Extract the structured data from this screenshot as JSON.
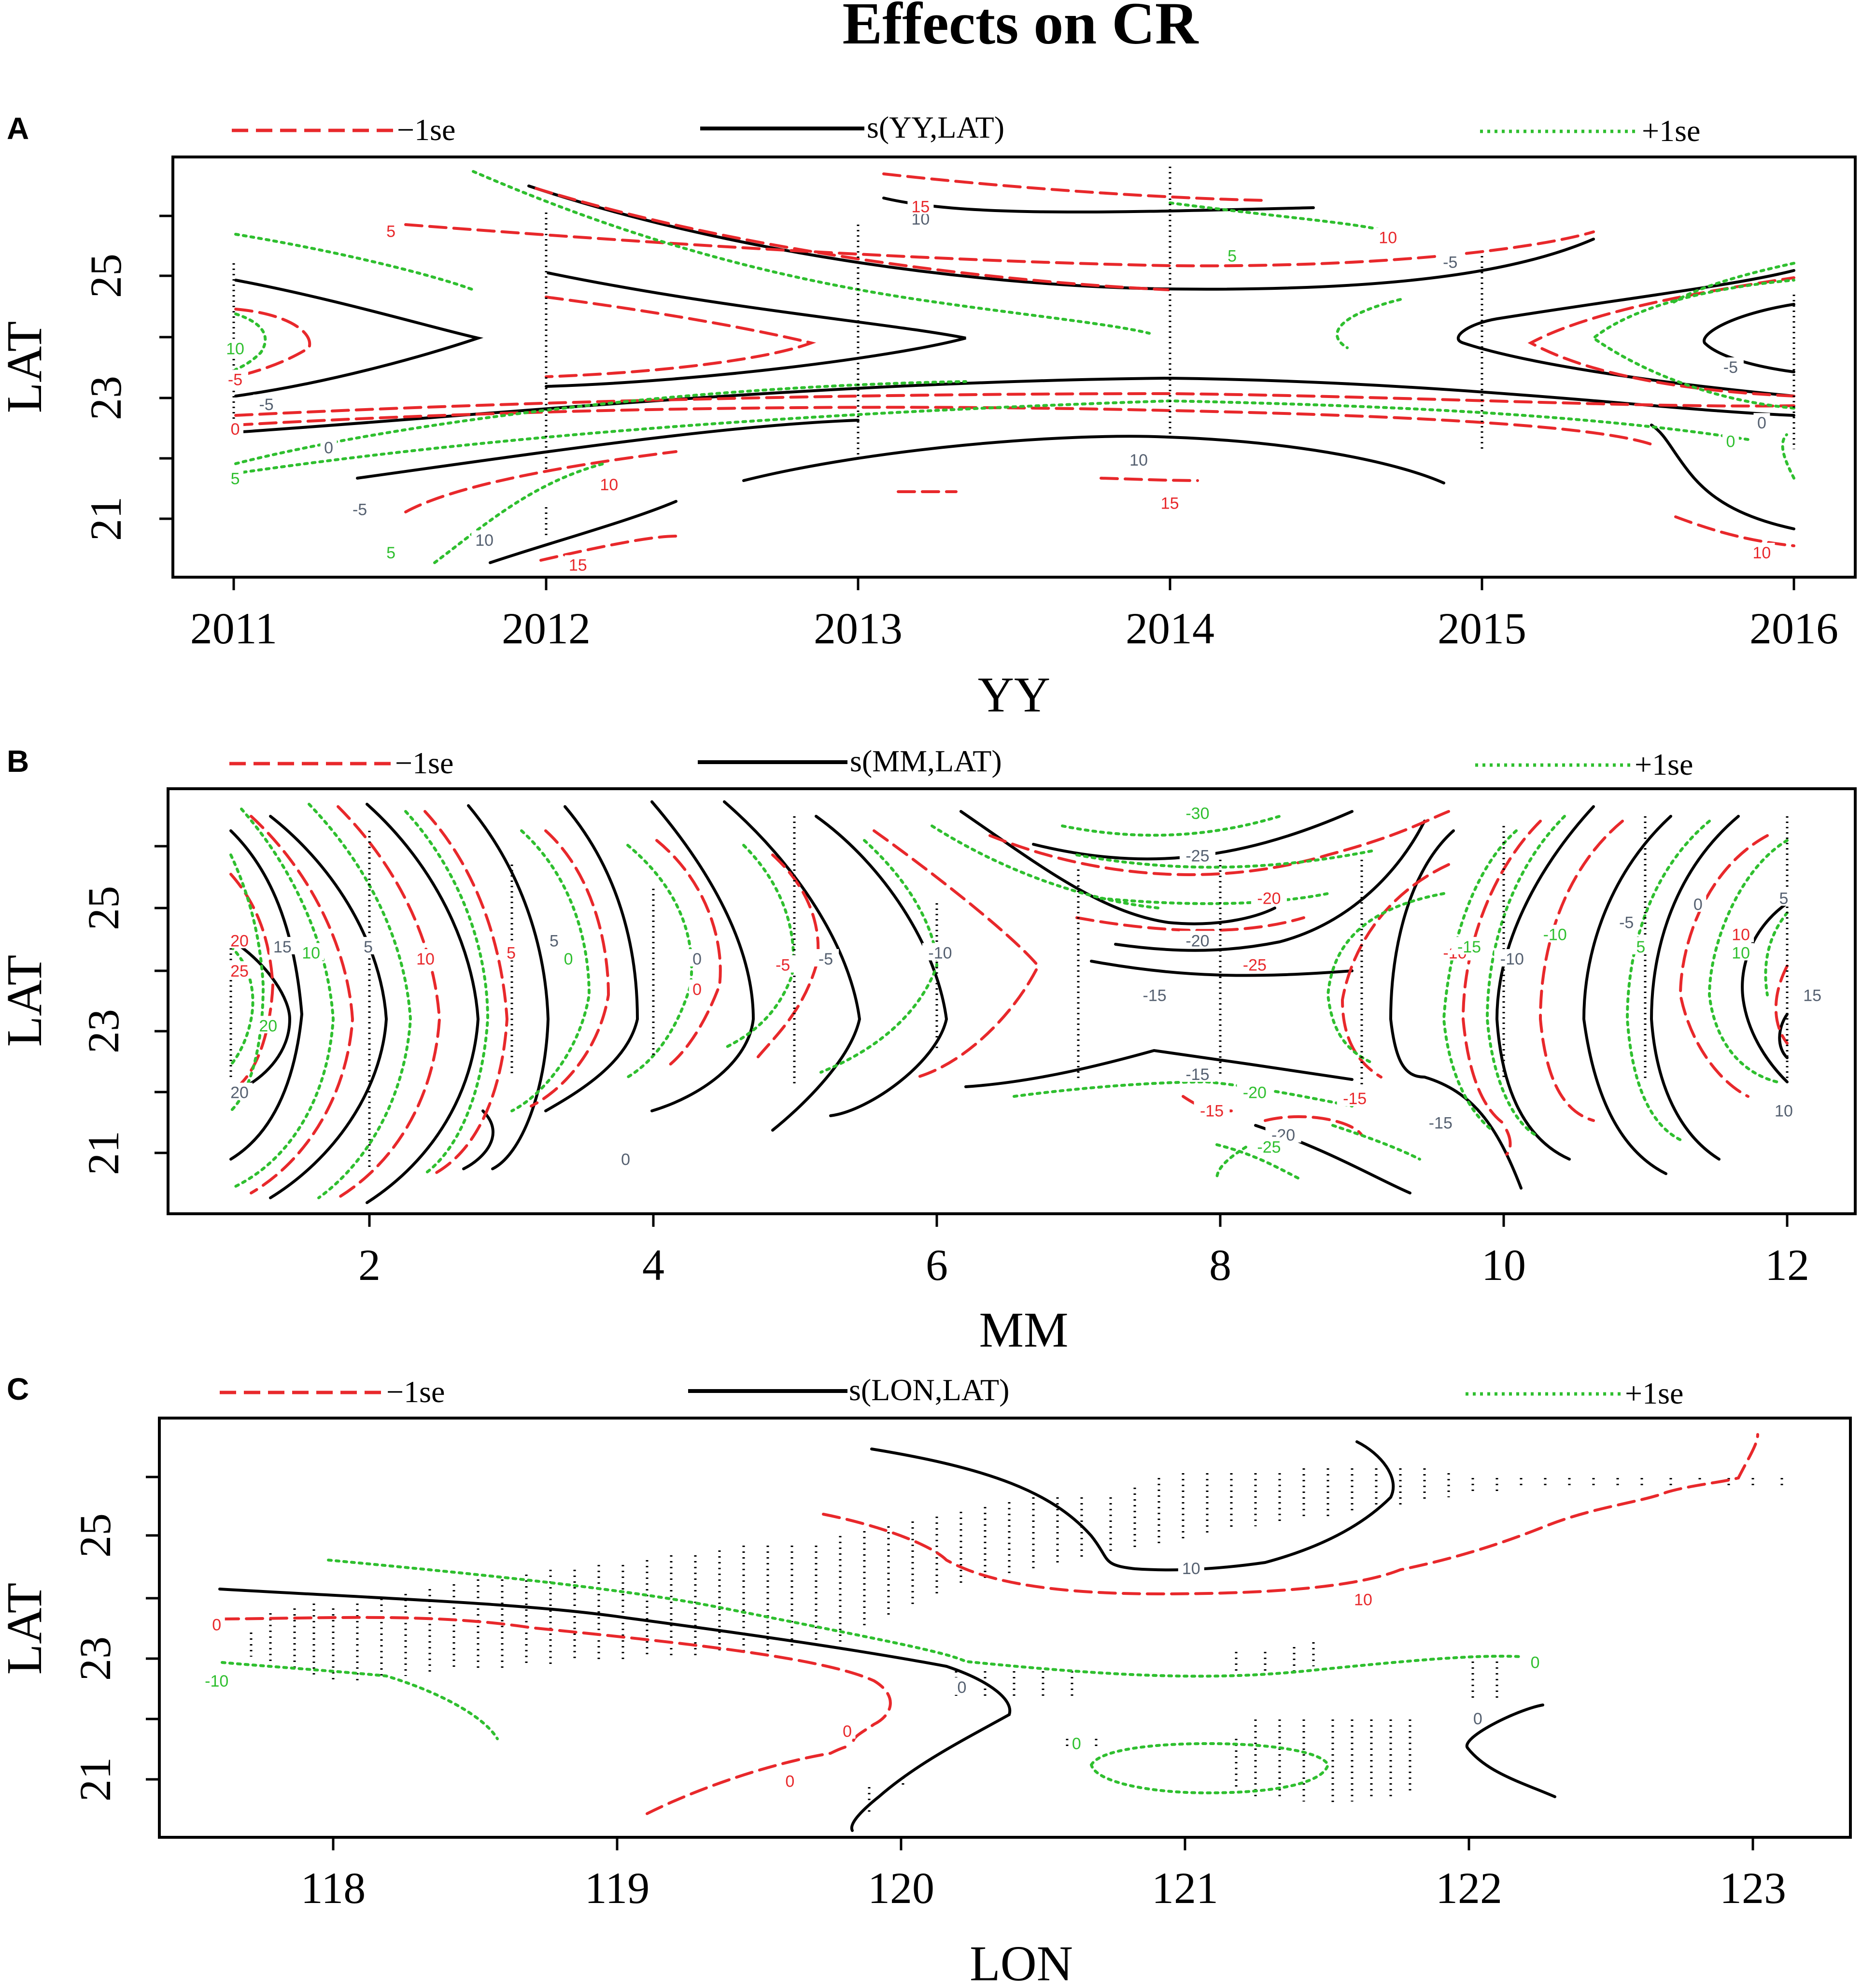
{
  "figure": {
    "title": "Effects on CR"
  },
  "legend": {
    "minus": "−1se",
    "plus": "+1se"
  },
  "colors": {
    "fit": "#000000",
    "minus": "#e8282b",
    "plus": "#2fbf2f",
    "frame": "#000000"
  },
  "chart_data": [
    {
      "type": "contour",
      "panel": "A",
      "title": "",
      "legend_fit": "s(YY,LAT)",
      "xlabel": "YY",
      "ylabel": "LAT",
      "xlim": [
        2010.8,
        2016.2
      ],
      "ylim": [
        20.2,
        27.0
      ],
      "xticks": [
        2011,
        2012,
        2013,
        2014,
        2015,
        2016
      ],
      "yticks": [
        21,
        23,
        25
      ],
      "xtick_labels": [
        "2011",
        "2012",
        "2013",
        "2014",
        "2015",
        "2016"
      ],
      "ytick_labels": [
        "21",
        "23",
        "25"
      ],
      "contour_labels": [
        {
          "series": "fit",
          "text": "-5",
          "x": 2011.1,
          "y": 23.0
        },
        {
          "series": "fit",
          "text": "0",
          "x": 2011.3,
          "y": 22.3
        },
        {
          "series": "fit",
          "text": "-5",
          "x": 2011.4,
          "y": 21.3
        },
        {
          "series": "fit",
          "text": "10",
          "x": 2013.2,
          "y": 26.0
        },
        {
          "series": "fit",
          "text": "-5",
          "x": 2014.9,
          "y": 25.3
        },
        {
          "series": "fit",
          "text": "10",
          "x": 2013.9,
          "y": 22.1
        },
        {
          "series": "fit",
          "text": "10",
          "x": 2011.8,
          "y": 20.8
        },
        {
          "series": "fit",
          "text": "-5",
          "x": 2015.8,
          "y": 23.6
        },
        {
          "series": "fit",
          "text": "0",
          "x": 2015.9,
          "y": 22.7
        },
        {
          "series": "minus",
          "text": "-5",
          "x": 2011.0,
          "y": 23.4
        },
        {
          "series": "minus",
          "text": "0",
          "x": 2011.0,
          "y": 22.6
        },
        {
          "series": "minus",
          "text": "5",
          "x": 2011.5,
          "y": 25.8
        },
        {
          "series": "minus",
          "text": "10",
          "x": 2012.2,
          "y": 21.7
        },
        {
          "series": "minus",
          "text": "15",
          "x": 2012.1,
          "y": 20.4
        },
        {
          "series": "minus",
          "text": "15",
          "x": 2013.2,
          "y": 26.2
        },
        {
          "series": "minus",
          "text": "10",
          "x": 2014.7,
          "y": 25.7
        },
        {
          "series": "minus",
          "text": "15",
          "x": 2014.0,
          "y": 21.4
        },
        {
          "series": "minus",
          "text": "10",
          "x": 2015.9,
          "y": 20.6
        },
        {
          "series": "plus",
          "text": "10",
          "x": 2011.0,
          "y": 23.9
        },
        {
          "series": "plus",
          "text": "5",
          "x": 2011.0,
          "y": 21.8
        },
        {
          "series": "plus",
          "text": "5",
          "x": 2011.5,
          "y": 20.6
        },
        {
          "series": "plus",
          "text": "5",
          "x": 2014.2,
          "y": 25.4
        },
        {
          "series": "plus",
          "text": "0",
          "x": 2015.8,
          "y": 22.4
        }
      ]
    },
    {
      "type": "contour",
      "panel": "B",
      "title": "",
      "legend_fit": "s(MM,LAT)",
      "xlabel": "MM",
      "ylabel": "LAT",
      "xlim": [
        0.6,
        12.4
      ],
      "ylim": [
        20.0,
        27.0
      ],
      "xticks": [
        2,
        4,
        6,
        8,
        10,
        12
      ],
      "yticks": [
        21,
        23,
        25
      ],
      "xtick_labels": [
        "2",
        "4",
        "6",
        "8",
        "10",
        "12"
      ],
      "ytick_labels": [
        "21",
        "23",
        "25"
      ],
      "contour_labels": [
        {
          "series": "fit",
          "text": "15",
          "x": 1.4,
          "y": 24.4
        },
        {
          "series": "fit",
          "text": "20",
          "x": 1.1,
          "y": 22.0
        },
        {
          "series": "fit",
          "text": "5",
          "x": 2.0,
          "y": 24.4
        },
        {
          "series": "fit",
          "text": "5",
          "x": 3.3,
          "y": 24.5
        },
        {
          "series": "fit",
          "text": "0",
          "x": 4.3,
          "y": 24.2
        },
        {
          "series": "fit",
          "text": "0",
          "x": 3.8,
          "y": 20.9
        },
        {
          "series": "fit",
          "text": "-5",
          "x": 5.2,
          "y": 24.2
        },
        {
          "series": "fit",
          "text": "-10",
          "x": 6.0,
          "y": 24.3
        },
        {
          "series": "fit",
          "text": "-25",
          "x": 7.8,
          "y": 25.9
        },
        {
          "series": "fit",
          "text": "-20",
          "x": 7.8,
          "y": 24.5
        },
        {
          "series": "fit",
          "text": "-15",
          "x": 7.5,
          "y": 23.6
        },
        {
          "series": "fit",
          "text": "-15",
          "x": 7.8,
          "y": 22.3
        },
        {
          "series": "fit",
          "text": "-20",
          "x": 8.4,
          "y": 21.3
        },
        {
          "series": "fit",
          "text": "-15",
          "x": 9.5,
          "y": 21.5
        },
        {
          "series": "fit",
          "text": "-10",
          "x": 10.0,
          "y": 24.2
        },
        {
          "series": "fit",
          "text": "-5",
          "x": 10.8,
          "y": 24.8
        },
        {
          "series": "fit",
          "text": "0",
          "x": 11.3,
          "y": 25.1
        },
        {
          "series": "fit",
          "text": "5",
          "x": 11.9,
          "y": 25.2
        },
        {
          "series": "fit",
          "text": "15",
          "x": 12.1,
          "y": 23.6
        },
        {
          "series": "fit",
          "text": "10",
          "x": 11.9,
          "y": 21.7
        },
        {
          "series": "minus",
          "text": "20",
          "x": 1.1,
          "y": 24.5
        },
        {
          "series": "minus",
          "text": "25",
          "x": 1.1,
          "y": 24.0
        },
        {
          "series": "minus",
          "text": "10",
          "x": 2.4,
          "y": 24.2
        },
        {
          "series": "minus",
          "text": "5",
          "x": 3.0,
          "y": 24.3
        },
        {
          "series": "minus",
          "text": "0",
          "x": 4.3,
          "y": 23.7
        },
        {
          "series": "minus",
          "text": "-5",
          "x": 4.9,
          "y": 24.1
        },
        {
          "series": "minus",
          "text": "-20",
          "x": 8.3,
          "y": 25.2
        },
        {
          "series": "minus",
          "text": "-25",
          "x": 8.2,
          "y": 24.1
        },
        {
          "series": "minus",
          "text": "-15",
          "x": 7.9,
          "y": 21.7
        },
        {
          "series": "minus",
          "text": "-15",
          "x": 8.9,
          "y": 21.9
        },
        {
          "series": "minus",
          "text": "-10",
          "x": 9.6,
          "y": 24.3
        },
        {
          "series": "minus",
          "text": "10",
          "x": 11.6,
          "y": 24.6
        },
        {
          "series": "plus",
          "text": "10",
          "x": 1.6,
          "y": 24.3
        },
        {
          "series": "plus",
          "text": "20",
          "x": 1.3,
          "y": 23.1
        },
        {
          "series": "plus",
          "text": "0",
          "x": 3.4,
          "y": 24.2
        },
        {
          "series": "plus",
          "text": "-30",
          "x": 7.8,
          "y": 26.6
        },
        {
          "series": "plus",
          "text": "-20",
          "x": 8.2,
          "y": 22.0
        },
        {
          "series": "plus",
          "text": "-25",
          "x": 8.3,
          "y": 21.1
        },
        {
          "series": "plus",
          "text": "-15",
          "x": 9.7,
          "y": 24.4
        },
        {
          "series": "plus",
          "text": "-10",
          "x": 10.3,
          "y": 24.6
        },
        {
          "series": "plus",
          "text": "5",
          "x": 10.9,
          "y": 24.4
        },
        {
          "series": "plus",
          "text": "10",
          "x": 11.6,
          "y": 24.3
        }
      ]
    },
    {
      "type": "contour",
      "panel": "C",
      "title": "",
      "legend_fit": "s(LON,LAT)",
      "xlabel": "LON",
      "ylabel": "LAT",
      "xlim": [
        117.4,
        123.3
      ],
      "ylim": [
        20.2,
        26.9
      ],
      "xticks": [
        118,
        119,
        120,
        121,
        122,
        123
      ],
      "yticks": [
        21,
        23,
        25
      ],
      "xtick_labels": [
        "118",
        "119",
        "120",
        "121",
        "122",
        "123"
      ],
      "ytick_labels": [
        "21",
        "23",
        "25"
      ],
      "contour_labels": [
        {
          "series": "fit",
          "text": "10",
          "x": 121.0,
          "y": 24.5
        },
        {
          "series": "fit",
          "text": "0",
          "x": 120.2,
          "y": 22.6
        },
        {
          "series": "fit",
          "text": "0",
          "x": 122.0,
          "y": 22.1
        },
        {
          "series": "minus",
          "text": "0",
          "x": 117.6,
          "y": 23.6
        },
        {
          "series": "minus",
          "text": "0",
          "x": 119.8,
          "y": 21.9
        },
        {
          "series": "minus",
          "text": "0",
          "x": 119.6,
          "y": 21.1
        },
        {
          "series": "minus",
          "text": "10",
          "x": 121.6,
          "y": 24.0
        },
        {
          "series": "plus",
          "text": "-10",
          "x": 117.6,
          "y": 22.7
        },
        {
          "series": "plus",
          "text": "0",
          "x": 122.2,
          "y": 23.0
        },
        {
          "series": "plus",
          "text": "0",
          "x": 120.6,
          "y": 21.7
        }
      ]
    }
  ]
}
